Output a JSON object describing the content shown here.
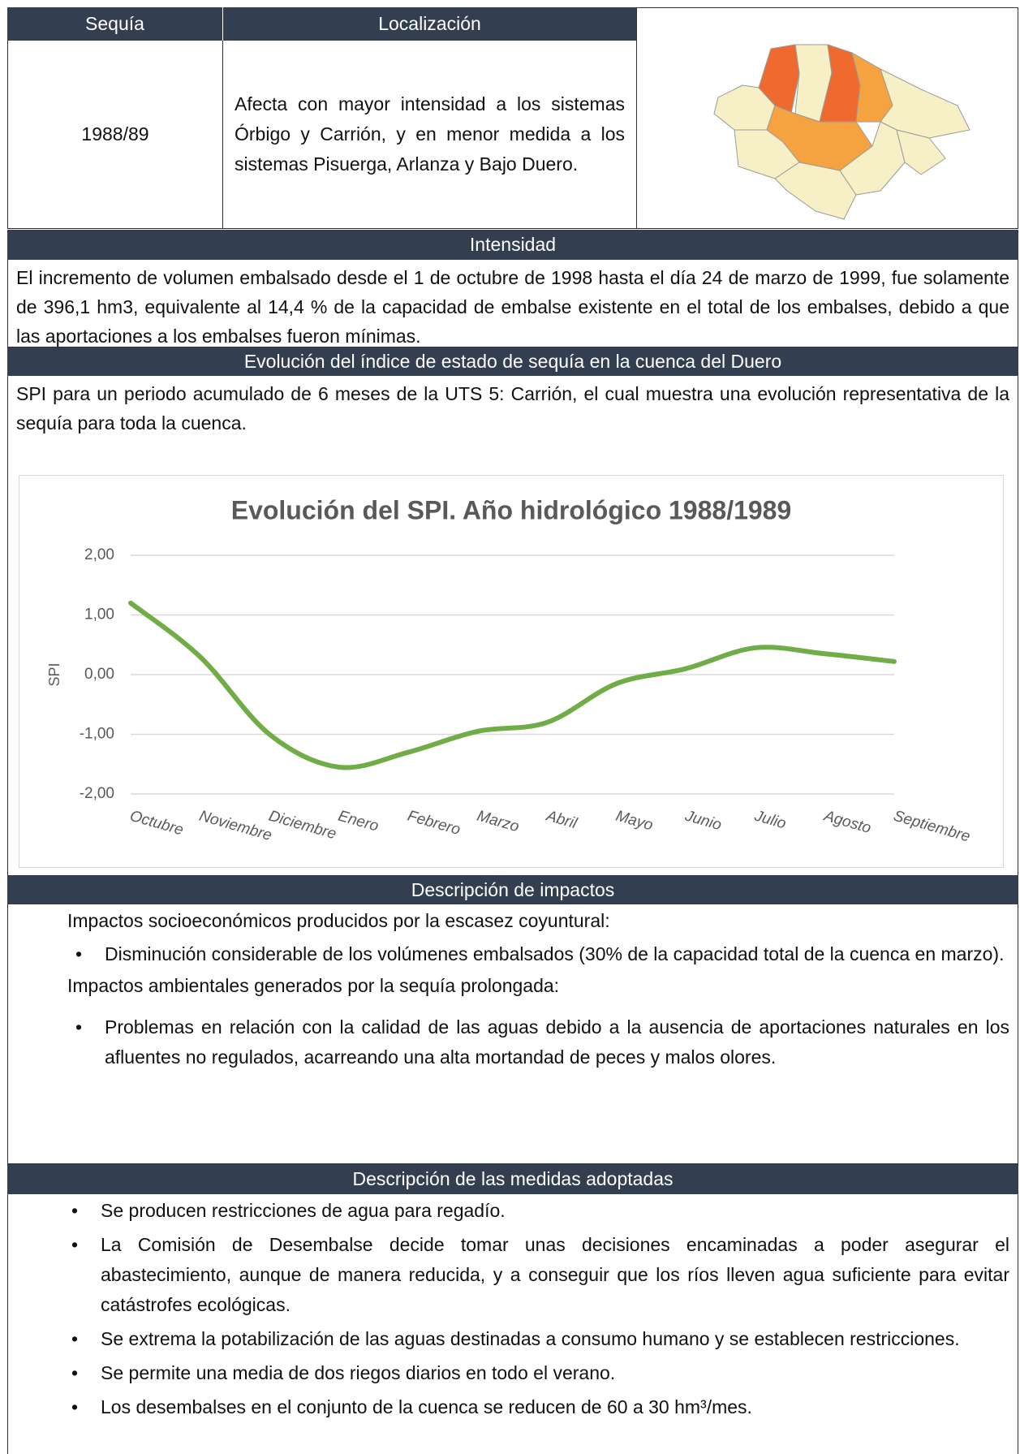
{
  "header": {
    "sequia": "Sequía",
    "localizacion": "Localización"
  },
  "row": {
    "year": "1988/89",
    "location": "Afecta con mayor intensidad a los sistemas Órbigo y Carrión, y en menor medida a los sistemas Pisuerga, Arlanza y Bajo Duero."
  },
  "intensidad": {
    "title": "Intensidad",
    "text": "El incremento de volumen embalsado desde el 1 de octubre de 1998 hasta el día 24 de marzo de 1999, fue solamente de 396,1 hm3, equivalente al 14,4 % de la capacidad de embalse existente en el total de los embalses, debido a que las aportaciones a los embalses fueron mínimas."
  },
  "evolucion": {
    "title": "Evolución del índice de estado de sequía en la cuenca del Duero",
    "text": "SPI para un periodo acumulado de 6 meses de la UTS 5: Carrión, el cual muestra una evolución representativa de la sequía para toda la cuenca."
  },
  "chart_data": {
    "type": "line",
    "title": "Evolución del SPI. Año hidrológico 1988/1989",
    "y_label": "SPI",
    "categories": [
      "Octubre",
      "Noviembre",
      "Diciembre",
      "Enero",
      "Febrero",
      "Marzo",
      "Abril",
      "Mayo",
      "Junio",
      "Julio",
      "Agosto",
      "Septiembre"
    ],
    "series": [
      {
        "name": "SPI",
        "color": "#70ad47",
        "values": [
          1.2,
          0.3,
          -1.0,
          -1.55,
          -1.3,
          -0.95,
          -0.8,
          -0.15,
          0.1,
          0.45,
          0.35,
          0.22
        ]
      }
    ],
    "ylim": [
      -2,
      2
    ],
    "yticks": [
      {
        "value": -2,
        "label": "-2,00"
      },
      {
        "value": -1,
        "label": "-1,00"
      },
      {
        "value": 0,
        "label": "0,00"
      },
      {
        "value": 1,
        "label": "1,00"
      },
      {
        "value": 2,
        "label": "2,00"
      }
    ],
    "grid": true
  },
  "impactos": {
    "title": "Descripción de impactos",
    "heading1": "Impactos socioeconómicos producidos por la escasez coyuntural:",
    "item1": "Disminución considerable de los volúmenes embalsados (30% de la capacidad total de la cuenca en marzo).",
    "heading2": "Impactos ambientales generados por la sequía prolongada:",
    "item2": "Problemas en relación con la calidad de las aguas debido a la ausencia de aportaciones naturales en los afluentes no regulados, acarreando una alta mortandad de peces y malos olores."
  },
  "medidas": {
    "title": "Descripción de las medidas adoptadas",
    "items": [
      "Se producen restricciones de agua para regadío.",
      "La Comisión de Desembalse decide tomar unas decisiones encaminadas a poder asegurar el abastecimiento, aunque de manera reducida, y a conseguir que los ríos lleven agua suficiente para evitar catástrofes ecológicas.",
      "Se extrema la potabilización de las aguas destinadas a consumo humano y se establecen restricciones.",
      "Se permite una media de dos riegos diarios en todo el verano.",
      "Los desembalses en el conjunto de la cuenca se reducen de 60 a 30 hm³/mes."
    ]
  }
}
